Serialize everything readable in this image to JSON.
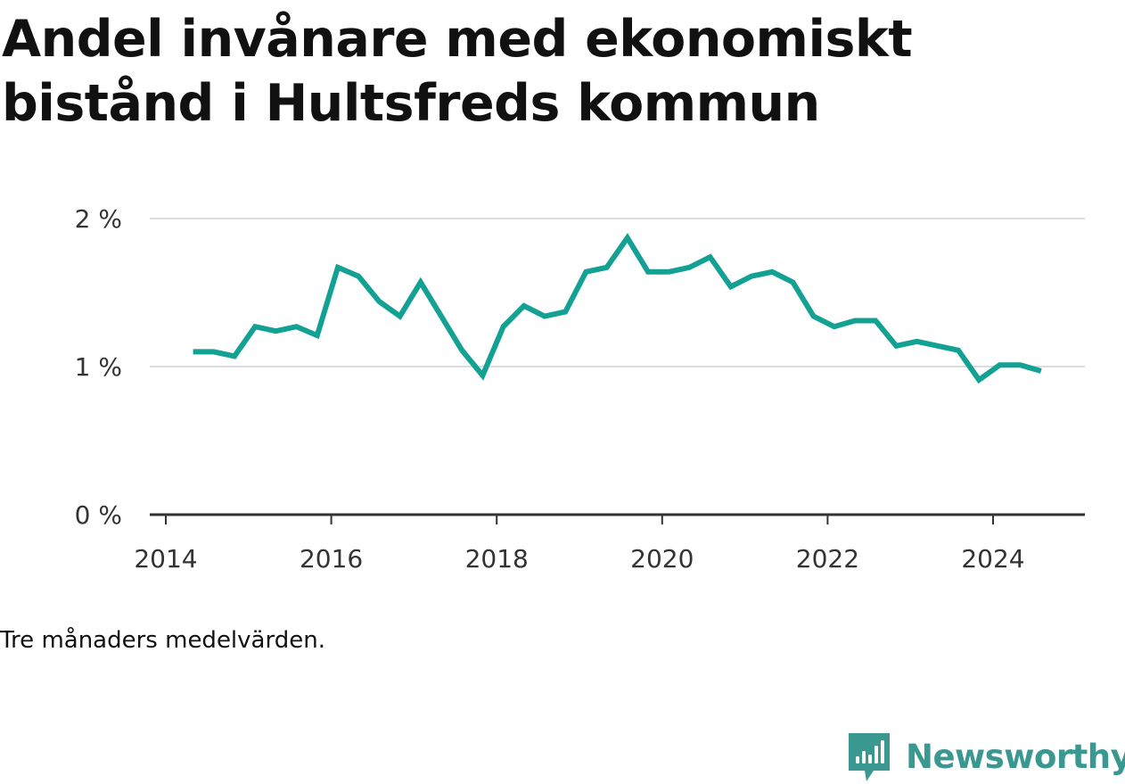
{
  "title": "Andel invånare med ekonomiskt bistånd i Hultsfreds kommun",
  "caption": "Tre månaders medelvärden.",
  "brand": {
    "name": "Newsworthy",
    "icon": "newsworthy-logo-icon",
    "color": "#3a9891"
  },
  "chart_data": {
    "type": "line",
    "line_color": "#12a192",
    "x_ticks": [
      "2014",
      "2016",
      "2018",
      "2020",
      "2022",
      "2024"
    ],
    "y_ticks": [
      "0 %",
      "1 %",
      "2 %"
    ],
    "ylim": [
      0,
      2
    ],
    "grid": true,
    "series": [
      {
        "x": [
          2014.33,
          2014.58,
          2014.83,
          2015.08,
          2015.33,
          2015.58,
          2015.83,
          2016.08,
          2016.33,
          2016.58,
          2016.83,
          2017.08,
          2017.33,
          2017.58,
          2017.83,
          2018.08,
          2018.33,
          2018.58,
          2018.83,
          2019.08,
          2019.33,
          2019.58,
          2019.83,
          2020.08,
          2020.33,
          2020.58,
          2020.83,
          2021.08,
          2021.33,
          2021.58,
          2021.83,
          2022.08,
          2022.33,
          2022.58,
          2022.83,
          2023.08,
          2023.33,
          2023.58,
          2023.83,
          2024.08,
          2024.33,
          2024.58
        ],
        "values": [
          1.1,
          1.1,
          1.07,
          1.27,
          1.24,
          1.27,
          1.21,
          1.67,
          1.61,
          1.44,
          1.34,
          1.57,
          1.34,
          1.11,
          0.94,
          1.27,
          1.41,
          1.34,
          1.37,
          1.64,
          1.67,
          1.87,
          1.64,
          1.64,
          1.67,
          1.74,
          1.54,
          1.61,
          1.64,
          1.57,
          1.34,
          1.27,
          1.31,
          1.31,
          1.14,
          1.17,
          1.14,
          1.11,
          0.91,
          1.01,
          1.01,
          0.97
        ]
      }
    ]
  }
}
